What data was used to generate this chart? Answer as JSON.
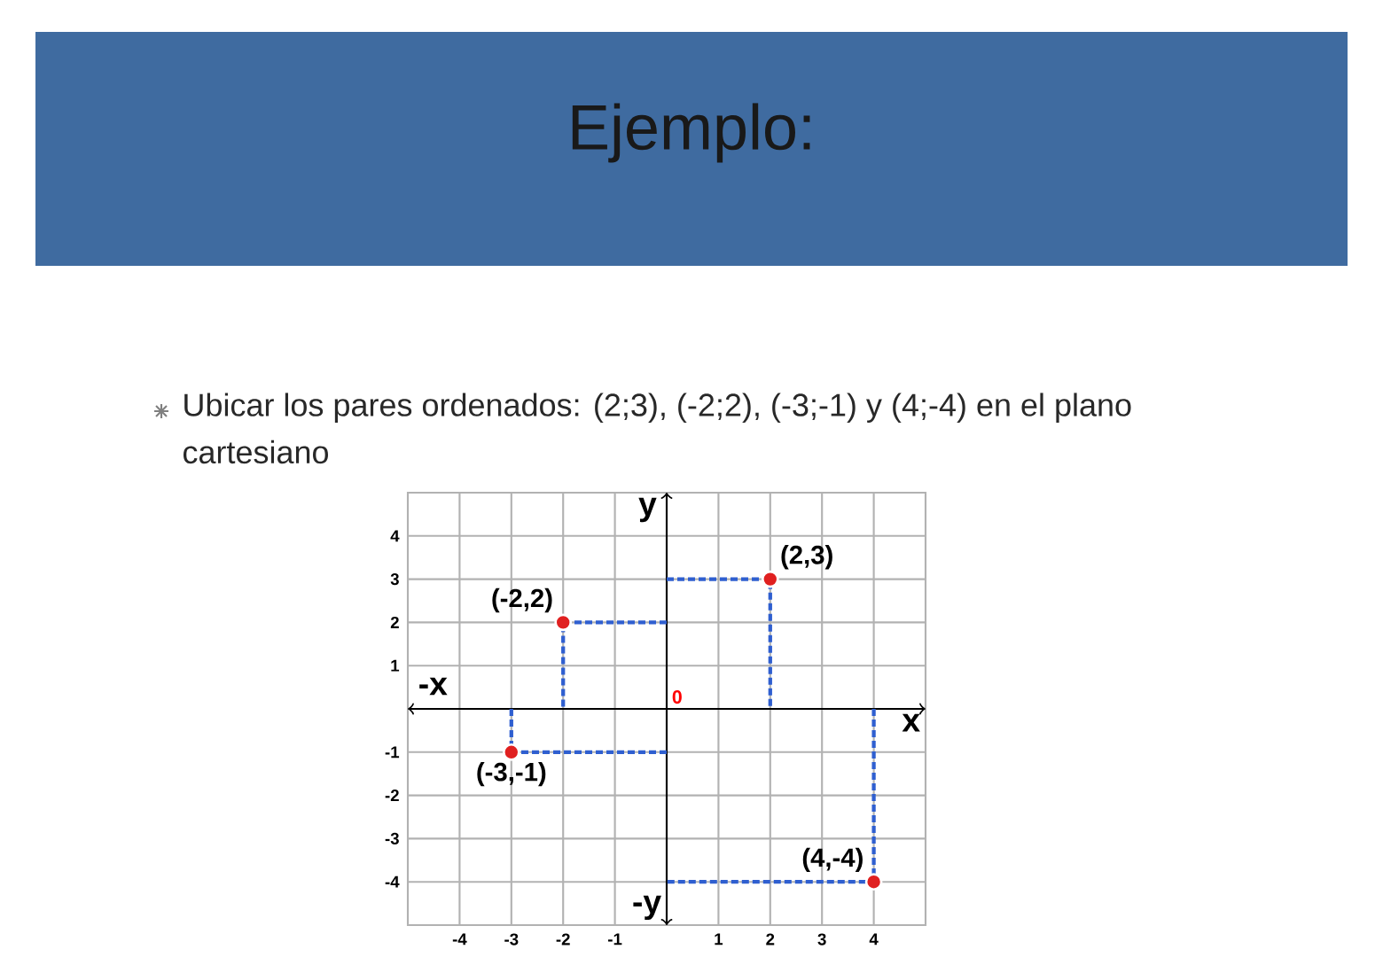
{
  "chart_data": {
    "type": "scatter",
    "title": "Ejemplo:",
    "subtitle": "Ubicar los pares ordenados: (2;3), (-2;2), (-3;-1) y (4;-4) en el plano cartesiano",
    "xlabel": "x",
    "ylabel": "y",
    "xlim": [
      -5,
      5
    ],
    "ylim": [
      -5,
      5
    ],
    "xticks": [
      -4,
      -3,
      -2,
      -1,
      1,
      2,
      3,
      4
    ],
    "yticks": [
      -4,
      -3,
      -2,
      -1,
      1,
      2,
      3,
      4
    ],
    "grid": true,
    "series": [
      {
        "type": "line",
        "line_style": "dashed",
        "marker": "none",
        "color": "#2f5fd0",
        "x": [
          0,
          2,
          2
        ],
        "values": [
          3,
          3,
          0
        ]
      },
      {
        "type": "line",
        "line_style": "dashed",
        "marker": "none",
        "color": "#2f5fd0",
        "x": [
          0,
          -2,
          -2
        ],
        "values": [
          2,
          2,
          0
        ]
      },
      {
        "type": "line",
        "line_style": "dashed",
        "marker": "none",
        "color": "#2f5fd0",
        "x": [
          -3,
          -3,
          0
        ],
        "values": [
          0,
          -1,
          -1
        ]
      },
      {
        "type": "line",
        "line_style": "dashed",
        "marker": "none",
        "color": "#2f5fd0",
        "x": [
          4,
          4,
          0
        ],
        "values": [
          0,
          -4,
          -4
        ]
      },
      {
        "type": "scatter",
        "marker": "circle",
        "color": "#e02020",
        "x": [
          2,
          -2,
          -3,
          4
        ],
        "values": [
          3,
          2,
          -1,
          -4
        ]
      }
    ],
    "annotations": [
      {
        "text": "(2,3)",
        "x": 2,
        "y": 3
      },
      {
        "text": "(-2,2)",
        "x": -2,
        "y": 2
      },
      {
        "text": "(-3,-1)",
        "x": -3,
        "y": -1
      },
      {
        "text": "(4,-4)",
        "x": 4,
        "y": -4
      },
      "-x",
      "-y",
      "0"
    ]
  }
}
